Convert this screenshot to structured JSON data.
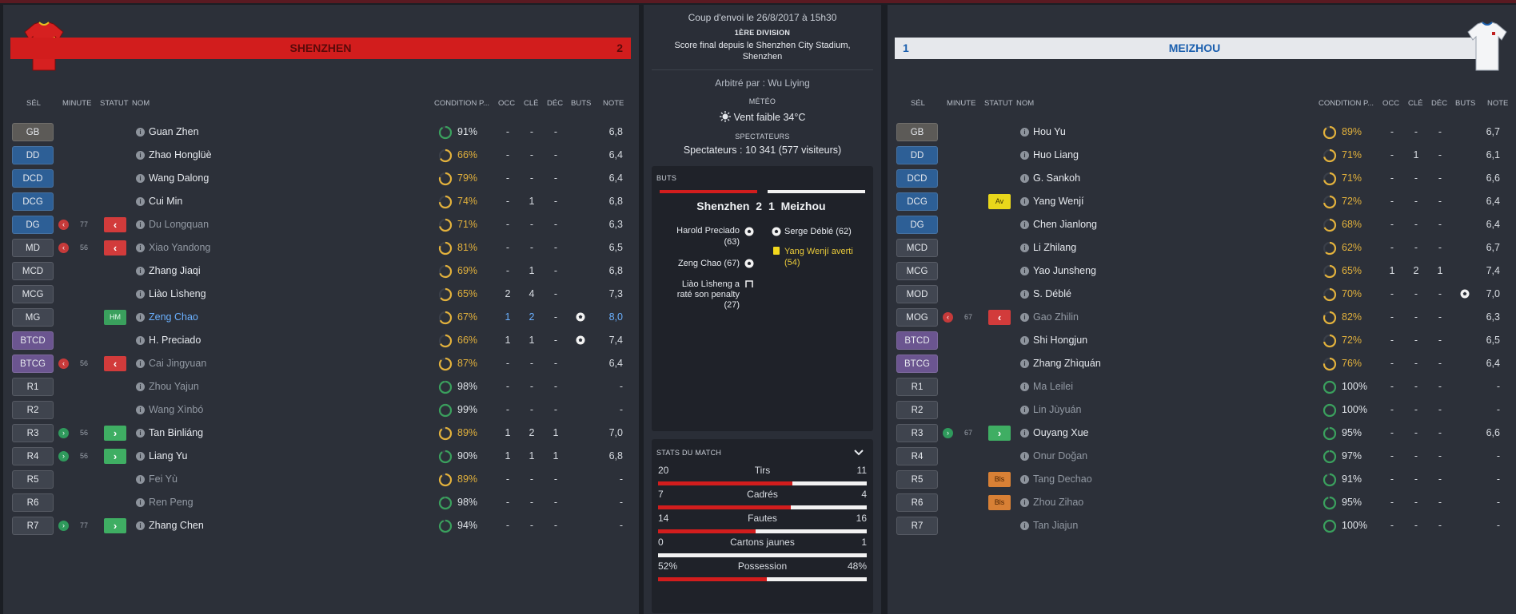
{
  "home": {
    "name": "SHENZHEN",
    "score": "2",
    "rows": [
      {
        "pos": "GB",
        "pc": "p-gb",
        "name": "Guan Zhen",
        "cond": "91%",
        "cc": "good",
        "occ": "-",
        "cle": "-",
        "dec": "-",
        "note": "6,8"
      },
      {
        "pos": "DD",
        "pc": "p-def",
        "name": "Zhao Honglüè",
        "cond": "66%",
        "cc": "ok",
        "occ": "-",
        "cle": "-",
        "dec": "-",
        "note": "6,4"
      },
      {
        "pos": "DCD",
        "pc": "p-def",
        "name": "Wang Dalong",
        "cond": "79%",
        "cc": "ok",
        "occ": "-",
        "cle": "-",
        "dec": "-",
        "note": "6,4"
      },
      {
        "pos": "DCG",
        "pc": "p-def",
        "name": "Cui Min",
        "cond": "74%",
        "cc": "ok",
        "occ": "-",
        "cle": "1",
        "dec": "-",
        "note": "6,8"
      },
      {
        "pos": "DG",
        "pc": "p-def",
        "sub": "out",
        "minute": "77",
        "status": "out",
        "name": "Du Longquan",
        "dim": true,
        "cond": "71%",
        "cc": "ok",
        "occ": "-",
        "cle": "-",
        "dec": "-",
        "note": "6,3"
      },
      {
        "pos": "MD",
        "pc": "p-mid",
        "sub": "out",
        "minute": "56",
        "status": "out",
        "name": "Xiao Yandong",
        "dim": true,
        "cond": "81%",
        "cc": "ok",
        "occ": "-",
        "cle": "-",
        "dec": "-",
        "note": "6,5"
      },
      {
        "pos": "MCD",
        "pc": "p-mid",
        "name": "Zhang Jiaqi",
        "cond": "69%",
        "cc": "ok",
        "occ": "-",
        "cle": "1",
        "dec": "-",
        "note": "6,8"
      },
      {
        "pos": "MCG",
        "pc": "p-mid",
        "name": "Liào Lìsheng",
        "cond": "65%",
        "cc": "ok",
        "occ": "2",
        "cle": "4",
        "dec": "-",
        "note": "7,3"
      },
      {
        "pos": "MG",
        "pc": "p-mid",
        "status": "hm",
        "status_text": "HM",
        "name": "Zeng Chao",
        "hl": true,
        "cond": "67%",
        "cc": "ok",
        "occ": "1",
        "cle": "2",
        "dec": "-",
        "goal": true,
        "note": "8,0"
      },
      {
        "pos": "BTCD",
        "pc": "p-fw",
        "name": "H. Preciado",
        "cond": "66%",
        "cc": "ok",
        "occ": "1",
        "cle": "1",
        "dec": "-",
        "goal": true,
        "note": "7,4"
      },
      {
        "pos": "BTCG",
        "pc": "p-fw",
        "sub": "out",
        "minute": "56",
        "status": "out",
        "name": "Cai Jingyuan",
        "dim": true,
        "cond": "87%",
        "cc": "ok",
        "occ": "-",
        "cle": "-",
        "dec": "-",
        "note": "6,4"
      },
      {
        "pos": "R1",
        "pc": "p-res",
        "name": "Zhou Yajun",
        "dim": true,
        "cond": "98%",
        "cc": "good",
        "occ": "-",
        "cle": "-",
        "dec": "-",
        "note": "-"
      },
      {
        "pos": "R2",
        "pc": "p-res",
        "name": "Wang Xìnbó",
        "dim": true,
        "cond": "99%",
        "cc": "good",
        "occ": "-",
        "cle": "-",
        "dec": "-",
        "note": "-"
      },
      {
        "pos": "R3",
        "pc": "p-res",
        "sub": "in",
        "minute": "56",
        "status": "in",
        "name": "Tan Binliáng",
        "cond": "89%",
        "cc": "ok",
        "occ": "1",
        "cle": "2",
        "dec": "1",
        "note": "7,0"
      },
      {
        "pos": "R4",
        "pc": "p-res",
        "sub": "in",
        "minute": "56",
        "status": "in",
        "name": "Liang Yu",
        "cond": "90%",
        "cc": "good",
        "occ": "1",
        "cle": "1",
        "dec": "1",
        "note": "6,8"
      },
      {
        "pos": "R5",
        "pc": "p-res",
        "name": "Fei Yù",
        "dim": true,
        "cond": "89%",
        "cc": "ok",
        "occ": "-",
        "cle": "-",
        "dec": "-",
        "note": "-"
      },
      {
        "pos": "R6",
        "pc": "p-res",
        "name": "Ren Peng",
        "dim": true,
        "cond": "98%",
        "cc": "good",
        "occ": "-",
        "cle": "-",
        "dec": "-",
        "note": "-"
      },
      {
        "pos": "R7",
        "pc": "p-res",
        "sub": "in",
        "minute": "77",
        "status": "in",
        "name": "Zhang Chen",
        "cond": "94%",
        "cc": "good",
        "occ": "-",
        "cle": "-",
        "dec": "-",
        "note": "-"
      }
    ]
  },
  "away": {
    "name": "MEIZHOU",
    "score": "1",
    "rows": [
      {
        "pos": "GB",
        "pc": "p-gb",
        "name": "Hou Yu",
        "cond": "89%",
        "cc": "ok",
        "occ": "-",
        "cle": "-",
        "dec": "-",
        "note": "6,7"
      },
      {
        "pos": "DD",
        "pc": "p-def",
        "name": "Huo Liang",
        "cond": "71%",
        "cc": "ok",
        "occ": "-",
        "cle": "1",
        "dec": "-",
        "note": "6,1"
      },
      {
        "pos": "DCD",
        "pc": "p-def",
        "name": "G. Sankoh",
        "cond": "71%",
        "cc": "ok",
        "occ": "-",
        "cle": "-",
        "dec": "-",
        "note": "6,6"
      },
      {
        "pos": "DCG",
        "pc": "p-def",
        "status": "av",
        "status_text": "Av",
        "name": "Yang Wenjí",
        "cond": "72%",
        "cc": "ok",
        "occ": "-",
        "cle": "-",
        "dec": "-",
        "note": "6,4"
      },
      {
        "pos": "DG",
        "pc": "p-def",
        "name": "Chen Jianlong",
        "cond": "68%",
        "cc": "ok",
        "occ": "-",
        "cle": "-",
        "dec": "-",
        "note": "6,4"
      },
      {
        "pos": "MCD",
        "pc": "p-mid",
        "name": "Li Zhilang",
        "cond": "62%",
        "cc": "ok",
        "occ": "-",
        "cle": "-",
        "dec": "-",
        "note": "6,7"
      },
      {
        "pos": "MCG",
        "pc": "p-mid",
        "name": "Yao Junsheng",
        "cond": "65%",
        "cc": "ok",
        "occ": "1",
        "cle": "2",
        "dec": "1",
        "note": "7,4"
      },
      {
        "pos": "MOD",
        "pc": "p-mid",
        "name": "S. Déblé",
        "cond": "70%",
        "cc": "ok",
        "occ": "-",
        "cle": "-",
        "dec": "-",
        "goal": true,
        "note": "7,0"
      },
      {
        "pos": "MOG",
        "pc": "p-mid",
        "sub": "out",
        "minute": "67",
        "status": "out",
        "name": "Gao Zhilin",
        "dim": true,
        "cond": "82%",
        "cc": "ok",
        "occ": "-",
        "cle": "-",
        "dec": "-",
        "note": "6,3"
      },
      {
        "pos": "BTCD",
        "pc": "p-fw",
        "name": "Shi Hongjun",
        "cond": "72%",
        "cc": "ok",
        "occ": "-",
        "cle": "-",
        "dec": "-",
        "note": "6,5"
      },
      {
        "pos": "BTCG",
        "pc": "p-fw",
        "name": "Zhang Zhìquán",
        "cond": "76%",
        "cc": "ok",
        "occ": "-",
        "cle": "-",
        "dec": "-",
        "note": "6,4"
      },
      {
        "pos": "R1",
        "pc": "p-res",
        "name": "Ma Leilei",
        "dim": true,
        "cond": "100%",
        "cc": "good",
        "occ": "-",
        "cle": "-",
        "dec": "-",
        "note": "-"
      },
      {
        "pos": "R2",
        "pc": "p-res",
        "name": "Lin Jùyuán",
        "dim": true,
        "cond": "100%",
        "cc": "good",
        "occ": "-",
        "cle": "-",
        "dec": "-",
        "note": "-"
      },
      {
        "pos": "R3",
        "pc": "p-res",
        "sub": "in",
        "minute": "67",
        "status": "in",
        "name": "Ouyang Xue",
        "cond": "95%",
        "cc": "good",
        "occ": "-",
        "cle": "-",
        "dec": "-",
        "note": "6,6"
      },
      {
        "pos": "R4",
        "pc": "p-res",
        "name": "Onur Doğan",
        "dim": true,
        "cond": "97%",
        "cc": "good",
        "occ": "-",
        "cle": "-",
        "dec": "-",
        "note": "-"
      },
      {
        "pos": "R5",
        "pc": "p-res",
        "status": "bls",
        "status_text": "Bls",
        "name": "Tang Dechao",
        "dim": true,
        "cond": "91%",
        "cc": "good",
        "occ": "-",
        "cle": "-",
        "dec": "-",
        "note": "-"
      },
      {
        "pos": "R6",
        "pc": "p-res",
        "status": "bls",
        "status_text": "Bls",
        "name": "Zhou Zihao",
        "dim": true,
        "cond": "95%",
        "cc": "good",
        "occ": "-",
        "cle": "-",
        "dec": "-",
        "note": "-"
      },
      {
        "pos": "R7",
        "pc": "p-res",
        "name": "Tan Jiajun",
        "dim": true,
        "cond": "100%",
        "cc": "good",
        "occ": "-",
        "cle": "-",
        "dec": "-",
        "note": "-"
      }
    ]
  },
  "headers": {
    "sel": "SÉL",
    "minute": "MINUTE",
    "statut": "STATUT",
    "nom": "NOM",
    "condition": "CONDITION P...",
    "occ": "OCC",
    "cle": "CLÉ",
    "dec": "DÉC",
    "buts": "BUTS",
    "note": "NOTE"
  },
  "match": {
    "kickoff": "Coup d'envoi le 26/8/2017 à 15h30",
    "competition": "1ÈRE DIVISION",
    "final_line1": "Score final depuis le Shenzhen City Stadium,",
    "final_line2": "Shenzhen",
    "referee": "Arbitré par : Wu Liying",
    "weather_label": "MÉTÉO",
    "weather": "Vent faible 34°C",
    "spectators_label": "SPECTATEURS",
    "spectators": "Spectateurs : 10 341 (577 visiteurs)"
  },
  "goals": {
    "label": "BUTS",
    "home_team": "Shenzhen",
    "home_score": "2",
    "away_score": "1",
    "away_team": "Meizhou",
    "home_events": [
      {
        "line1": "Harold Preciado",
        "line2": "(63)"
      },
      {
        "line1": "Zeng Chao (67)",
        "line2": ""
      },
      {
        "line1": "Liào Lìsheng a",
        "line2": "raté son penalty",
        "line3": "(27)"
      }
    ],
    "away_events": [
      {
        "text": "Serge Déblé (62)"
      },
      {
        "text": "Yang Wenjí averti",
        "text2": "(54)"
      }
    ]
  },
  "stats": {
    "label": "STATS DU MATCH",
    "rows": [
      {
        "home": "20",
        "label": "Tirs",
        "away": "11",
        "home_share": 0.645
      },
      {
        "home": "7",
        "label": "Cadrés",
        "away": "4",
        "home_share": 0.636
      },
      {
        "home": "14",
        "label": "Fautes",
        "away": "16",
        "home_share": 0.467
      },
      {
        "home": "0",
        "label": "Cartons jaunes",
        "away": "1",
        "home_share": 0.0
      },
      {
        "home": "52%",
        "label": "Possession",
        "away": "48%",
        "home_share": 0.52
      }
    ]
  },
  "colors": {
    "home_primary": "#d21d1d",
    "away_primary": "#e6e8ec",
    "away_text": "#1b5fae",
    "condition_ok": "#e2b13c",
    "condition_good": "#3aa05d"
  }
}
